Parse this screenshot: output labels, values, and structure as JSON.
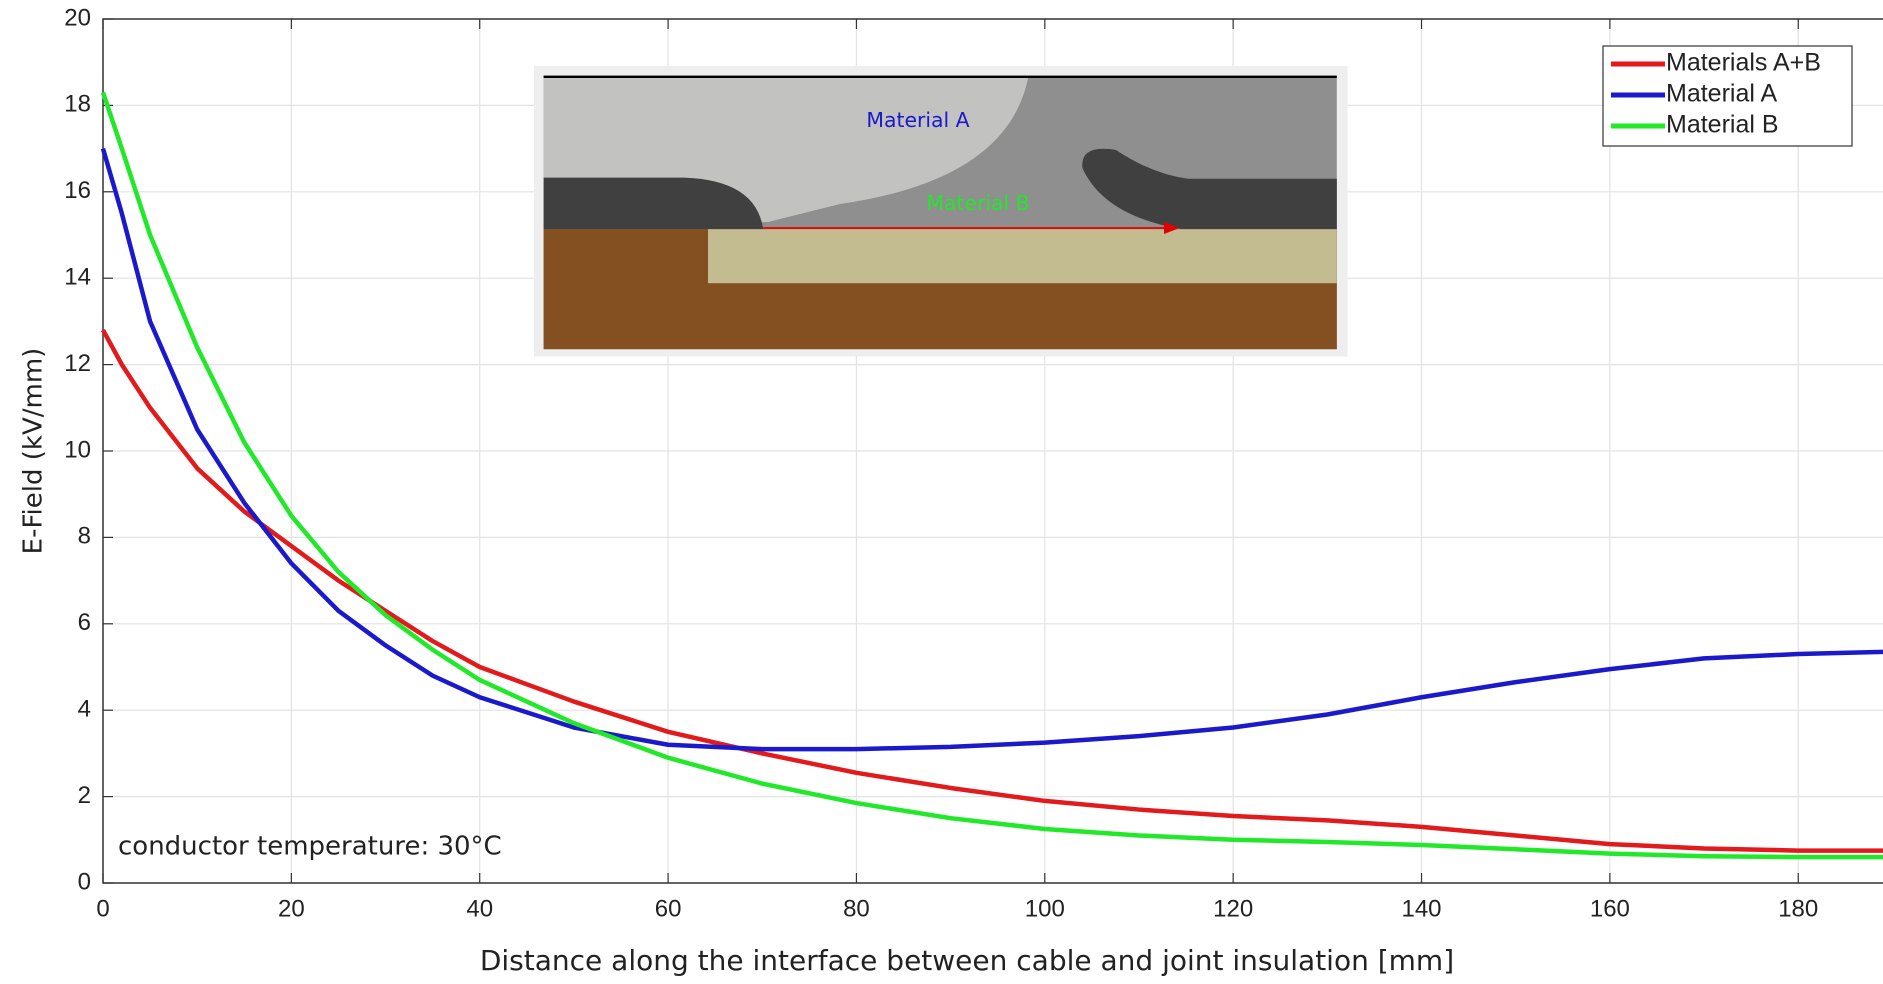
{
  "chart_data": {
    "type": "line",
    "xlabel": "Distance along the interface between cable and joint insulation [mm]",
    "ylabel": "E-Field (kV/mm)",
    "annotation": "conductor temperature: 30°C",
    "inset_labels": [
      "Material A",
      "Material B"
    ],
    "x": [
      0,
      2,
      5,
      10,
      15,
      20,
      25,
      30,
      35,
      40,
      50,
      60,
      70,
      80,
      90,
      100,
      110,
      120,
      130,
      140,
      150,
      160,
      170,
      180,
      189
    ],
    "series": [
      {
        "name": "Materials A+B",
        "color": "#e31a1c",
        "values": [
          12.8,
          12.0,
          11.0,
          9.6,
          8.6,
          7.8,
          7.0,
          6.3,
          5.6,
          5.0,
          4.2,
          3.5,
          3.0,
          2.55,
          2.2,
          1.9,
          1.7,
          1.55,
          1.45,
          1.3,
          1.1,
          0.9,
          0.8,
          0.75,
          0.75
        ]
      },
      {
        "name": "Material A",
        "color": "#1a1acc",
        "values": [
          17.0,
          15.5,
          13.0,
          10.5,
          8.8,
          7.4,
          6.3,
          5.5,
          4.8,
          4.3,
          3.6,
          3.2,
          3.1,
          3.1,
          3.15,
          3.25,
          3.4,
          3.6,
          3.9,
          4.3,
          4.65,
          4.95,
          5.2,
          5.3,
          5.35
        ]
      },
      {
        "name": "Material B",
        "color": "#22e82a",
        "values": [
          18.3,
          17.0,
          15.0,
          12.4,
          10.2,
          8.5,
          7.2,
          6.2,
          5.4,
          4.7,
          3.7,
          2.9,
          2.3,
          1.85,
          1.5,
          1.25,
          1.1,
          1.0,
          0.95,
          0.88,
          0.78,
          0.68,
          0.62,
          0.6,
          0.6
        ]
      }
    ],
    "xlim": [
      0,
      189
    ],
    "ylim": [
      0,
      20
    ],
    "xticks": [
      0,
      20,
      40,
      60,
      80,
      100,
      120,
      140,
      160,
      180
    ],
    "yticks": [
      0,
      2,
      4,
      6,
      8,
      10,
      12,
      14,
      16,
      18,
      20
    ],
    "grid": true,
    "legend": "upper right"
  }
}
